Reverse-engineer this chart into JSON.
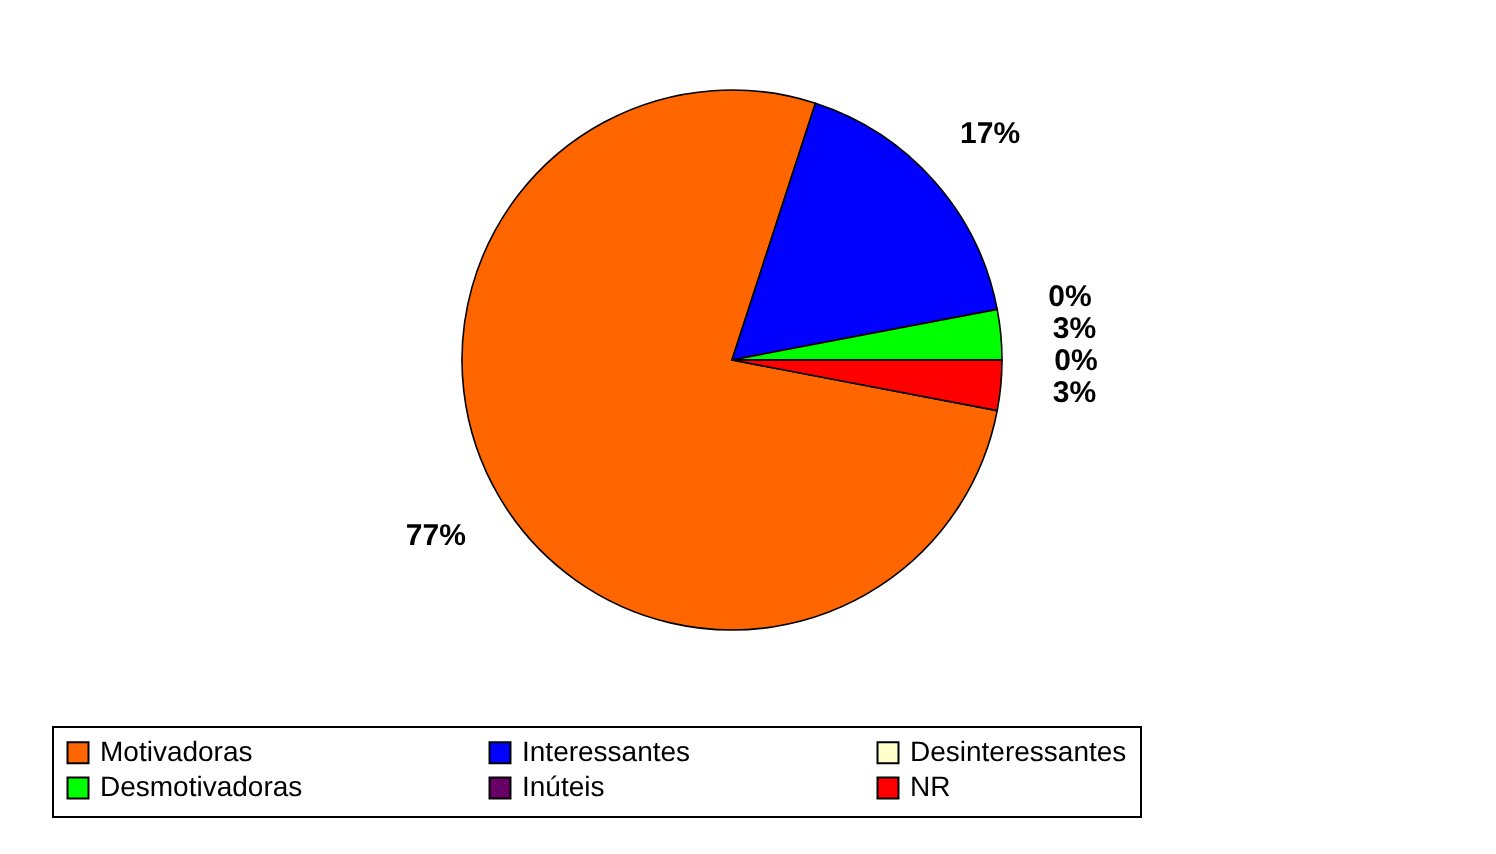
{
  "chart_data": {
    "type": "pie",
    "categories": [
      "Motivadoras",
      "Interessantes",
      "Desinteressantes",
      "Desmotivadoras",
      "Inúteis",
      "NR"
    ],
    "values": [
      77,
      17,
      0,
      3,
      0,
      3
    ],
    "colors": [
      "#ff6600",
      "#0000ff",
      "#ffffcc",
      "#00ff00",
      "#660066",
      "#ff0000"
    ],
    "value_labels": [
      "77%",
      "17%",
      "0%",
      "3%",
      "0%",
      "3%"
    ],
    "legend": "bottom"
  }
}
